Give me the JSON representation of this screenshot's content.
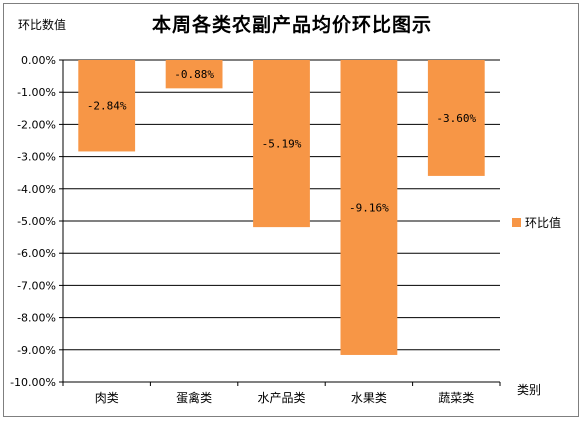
{
  "chart_data": {
    "type": "bar",
    "title": "本周各类农副产品均价环比图示",
    "ylabel": "环比数值",
    "xlabel": "类别",
    "categories": [
      "肉类",
      "蛋禽类",
      "水产品类",
      "水果类",
      "蔬菜类"
    ],
    "series": [
      {
        "name": "环比值",
        "values": [
          -2.84,
          -0.88,
          -5.19,
          -9.16,
          -3.6
        ]
      }
    ],
    "data_labels": [
      "-2.84%",
      "-0.88%",
      "-5.19%",
      "-9.16%",
      "-3.60%"
    ],
    "ylim": [
      -10,
      0
    ],
    "yticks": [
      "0.00%",
      "-1.00%",
      "-2.00%",
      "-3.00%",
      "-4.00%",
      "-5.00%",
      "-6.00%",
      "-7.00%",
      "-8.00%",
      "-9.00%",
      "-10.00%"
    ],
    "grid": true,
    "legend_position": "right",
    "bar_color": "#f79646"
  }
}
